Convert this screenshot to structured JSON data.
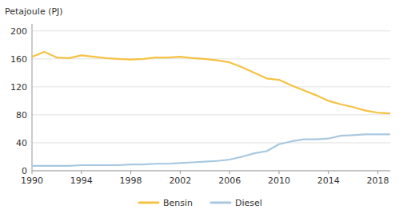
{
  "chart_data": {
    "type": "line",
    "ylabel": "Petajoule (PJ)",
    "x": [
      1990,
      1991,
      1992,
      1993,
      1994,
      1995,
      1996,
      1997,
      1998,
      1999,
      2000,
      2001,
      2002,
      2003,
      2004,
      2005,
      2006,
      2007,
      2008,
      2009,
      2010,
      2011,
      2012,
      2013,
      2014,
      2015,
      2016,
      2017,
      2018,
      2019
    ],
    "series": [
      {
        "name": "Bensin",
        "color": "#F5C242",
        "values": [
          163,
          170,
          162,
          161,
          165,
          163,
          161,
          160,
          159,
          160,
          162,
          162,
          163,
          161,
          160,
          158,
          155,
          148,
          140,
          132,
          130,
          122,
          115,
          108,
          100,
          95,
          91,
          86,
          83,
          82
        ]
      },
      {
        "name": "Diesel",
        "color": "#A8C8E0",
        "values": [
          7,
          7,
          7,
          7,
          8,
          8,
          8,
          8,
          9,
          9,
          10,
          10,
          11,
          12,
          13,
          14,
          16,
          20,
          25,
          28,
          38,
          42,
          45,
          45,
          46,
          50,
          51,
          52,
          52,
          52
        ]
      }
    ],
    "xlim": [
      1990,
      2019
    ],
    "xticks": [
      1990,
      1994,
      1998,
      2002,
      2006,
      2010,
      2014,
      2018
    ],
    "ylim": [
      0,
      210
    ],
    "yticks": [
      0,
      40,
      80,
      120,
      160,
      200
    ],
    "grid": true,
    "legend": "bottom"
  }
}
